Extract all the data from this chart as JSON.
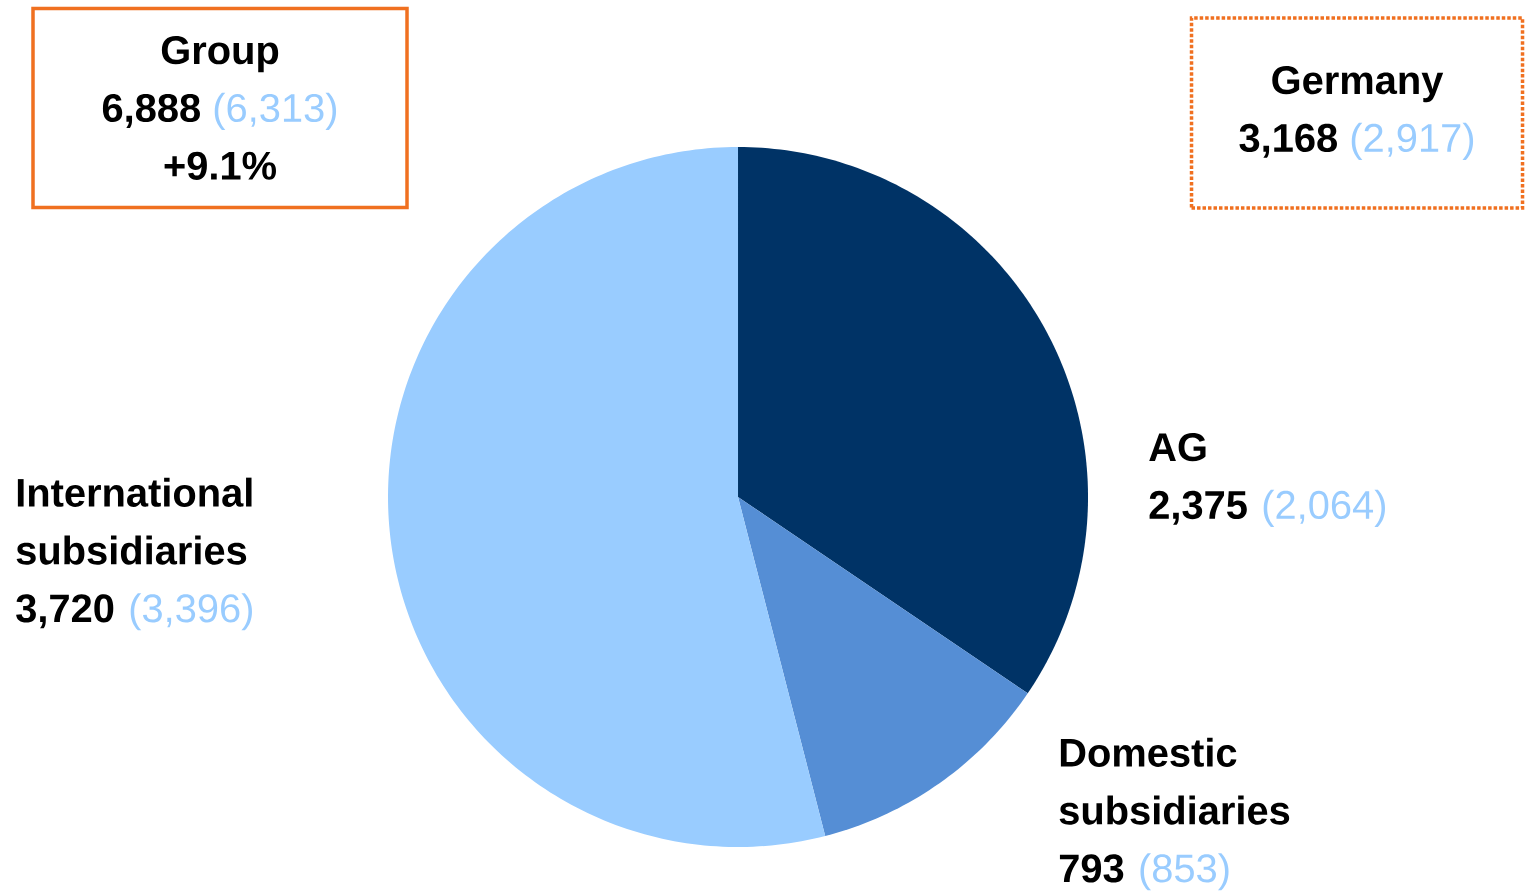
{
  "chart_data": {
    "type": "pie",
    "categories": [
      "AG",
      "Domestic subsidiaries",
      "International subsidiaries"
    ],
    "values": [
      2375,
      793,
      3720
    ],
    "value_labels": [
      "2,375",
      "793",
      "3,720"
    ],
    "colors": [
      "#003366",
      "#558ed5",
      "#99ccff"
    ],
    "annotations": [
      "Group",
      "6,888",
      "(6,313)",
      "+9.1%",
      "Germany",
      "3,168",
      "(2,917)",
      "(2,064)",
      "(853)",
      "(3,396)"
    ]
  }
}
